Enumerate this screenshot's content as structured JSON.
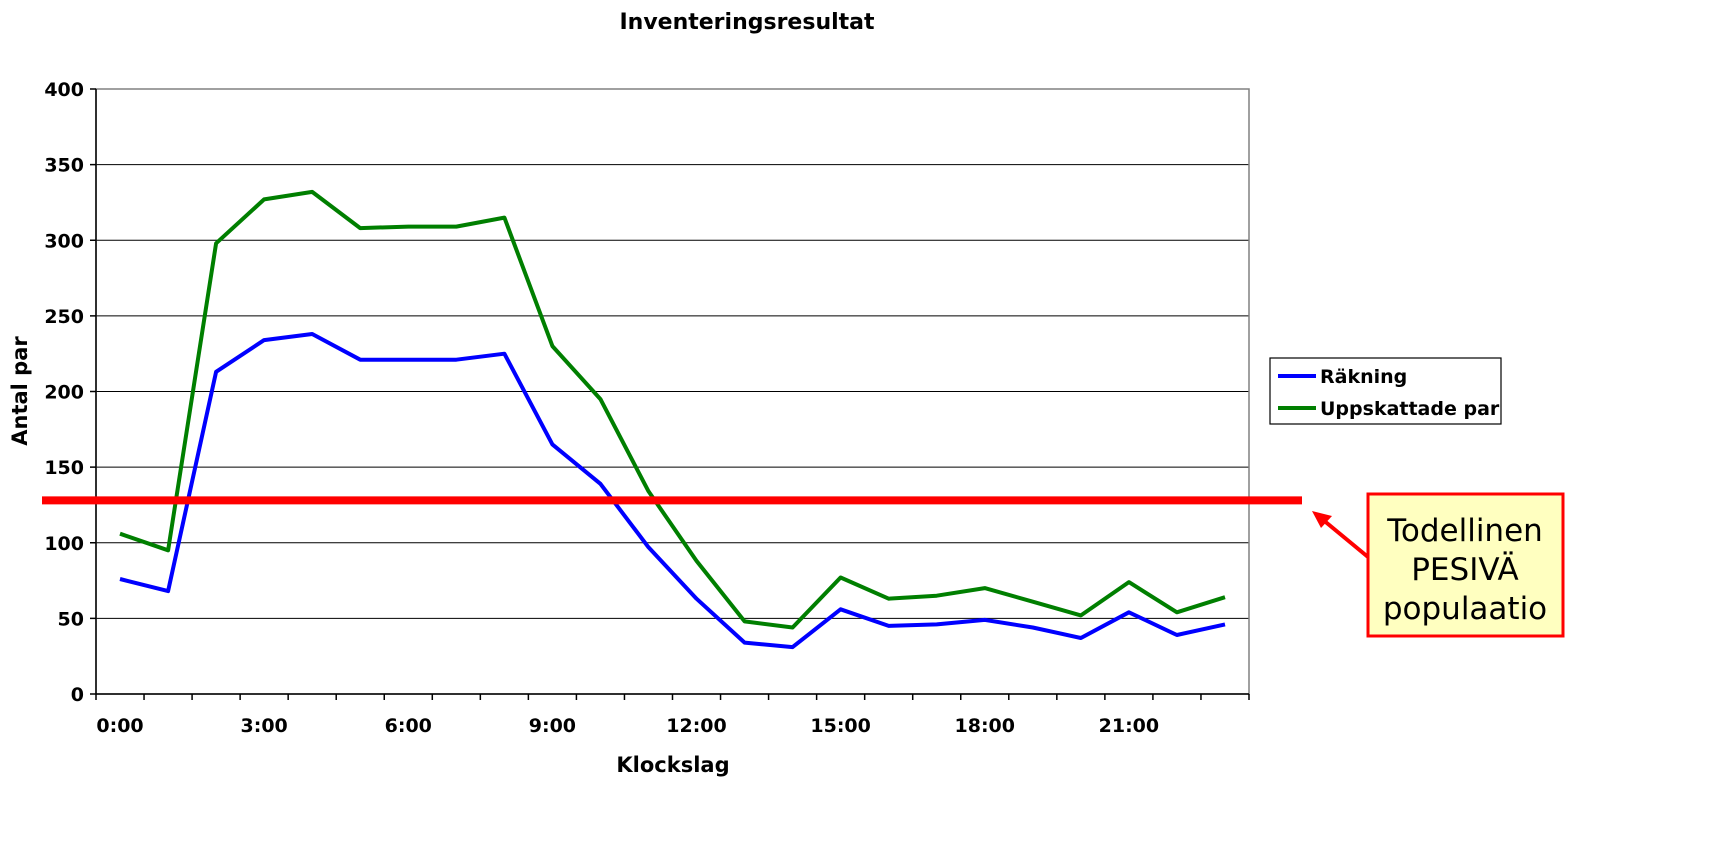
{
  "chart_data": {
    "type": "line",
    "title": "Inventeringsresultat",
    "xlabel": "Klockslag",
    "ylabel": "Antal par",
    "ylim": [
      0,
      400
    ],
    "yticks": [
      "0",
      "50",
      "100",
      "150",
      "200",
      "250",
      "300",
      "350",
      "400"
    ],
    "x": [
      0,
      1,
      2,
      3,
      4,
      5,
      6,
      7,
      8,
      9,
      10,
      11,
      12,
      13,
      14,
      15,
      16,
      17,
      18,
      19,
      20,
      21,
      22,
      23
    ],
    "xticks": [
      "0:00",
      "3:00",
      "6:00",
      "9:00",
      "12:00",
      "15:00",
      "18:00",
      "21:00"
    ],
    "xtick_hours": [
      0,
      3,
      6,
      9,
      12,
      15,
      18,
      21
    ],
    "series": [
      {
        "name": "Räkning",
        "color": "#0000ff",
        "values": [
          76,
          68,
          213,
          234,
          238,
          221,
          221,
          221,
          225,
          165,
          139,
          97,
          63,
          34,
          31,
          56,
          45,
          46,
          49,
          44,
          37,
          54,
          39,
          46
        ]
      },
      {
        "name": "Uppskattade par",
        "color": "#007f00",
        "values": [
          106,
          95,
          298,
          327,
          332,
          308,
          309,
          309,
          315,
          230,
          195,
          134,
          88,
          48,
          44,
          77,
          63,
          65,
          70,
          61,
          52,
          74,
          54,
          64
        ]
      }
    ],
    "legend_position": "right",
    "grid": true,
    "reference_line": {
      "value": 128,
      "color": "#ff0000"
    },
    "annotation": {
      "lines": [
        "Todellinen",
        "PESIVÄ",
        "populaatio"
      ],
      "fill": "#ffffc0",
      "border": "#ff0000"
    }
  }
}
